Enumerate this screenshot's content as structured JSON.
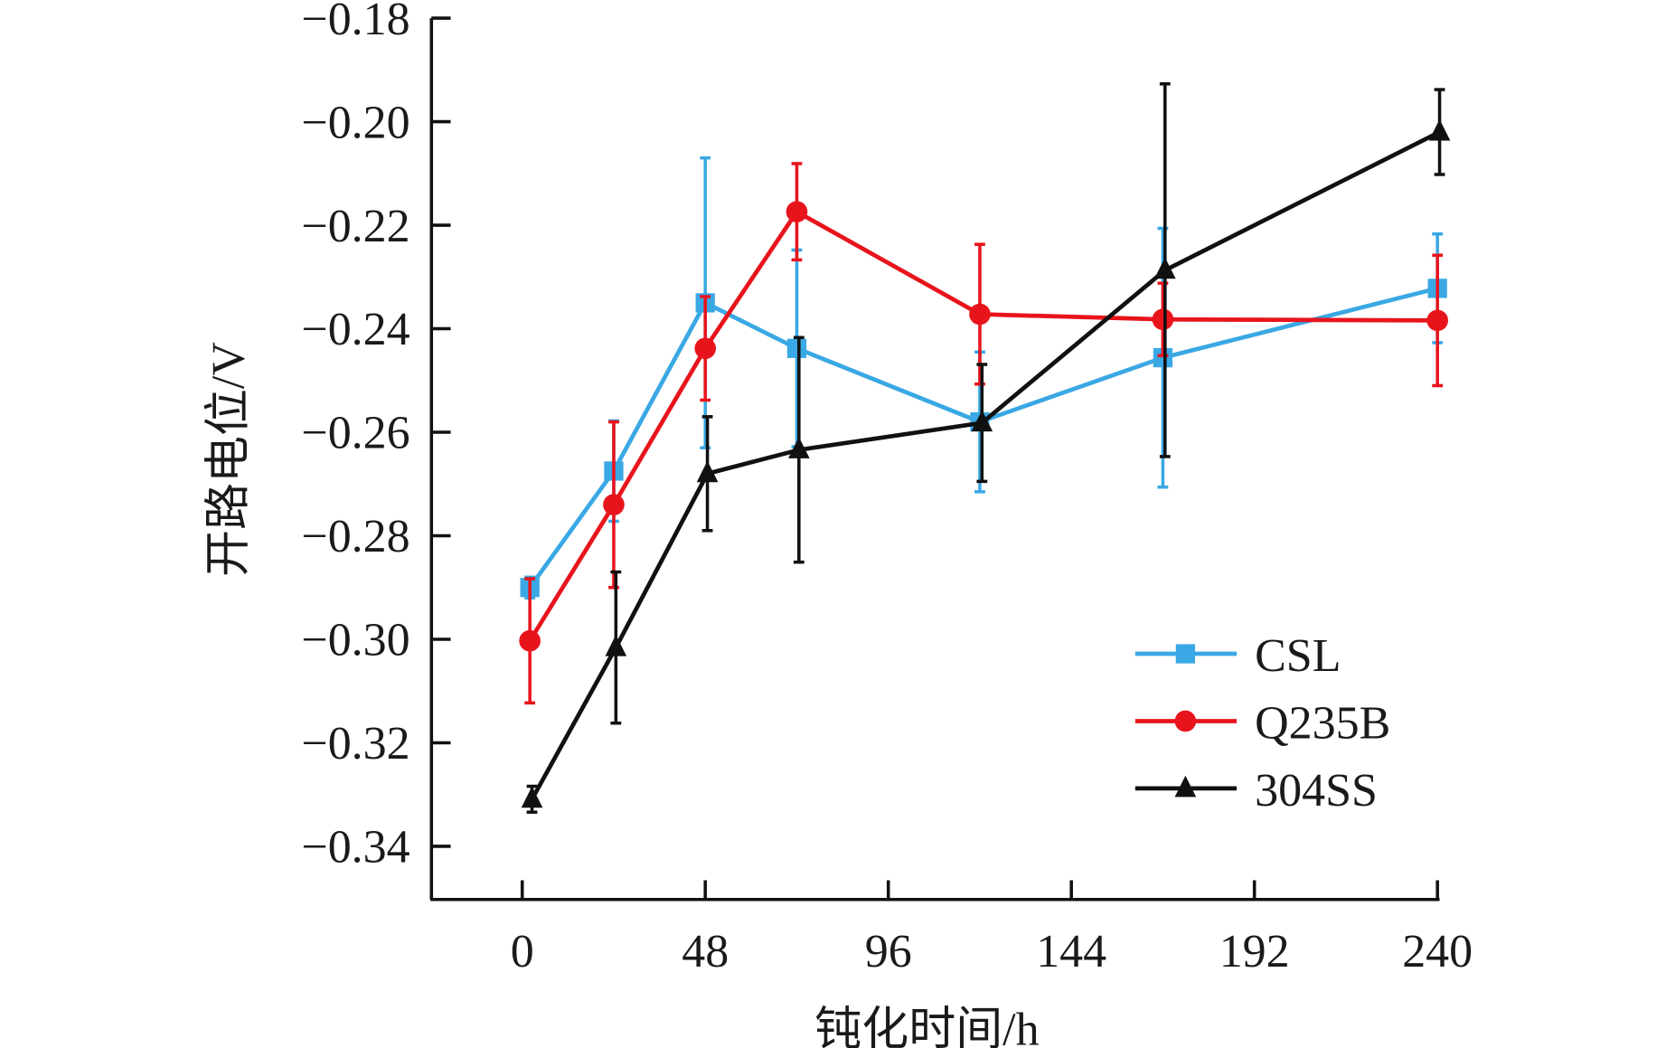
{
  "chart_data": {
    "type": "line",
    "title": "",
    "xlabel": "钝化时间/h",
    "ylabel": "开路电位/V",
    "xlim": [
      -50,
      250
    ],
    "ylim": [
      -0.35,
      -0.18
    ],
    "x_ticks": [
      0,
      48,
      96,
      144,
      192,
      240
    ],
    "x_tick_labels": [
      "0",
      "48",
      "96",
      "144",
      "192",
      "240"
    ],
    "y_ticks": [
      -0.18,
      -0.2,
      -0.22,
      -0.24,
      -0.26,
      -0.28,
      -0.3,
      -0.32,
      -0.34
    ],
    "y_tick_labels": [
      "−0.18",
      "−0.20",
      "−0.22",
      "−0.24",
      "−0.26",
      "−0.28",
      "−0.30",
      "−0.32",
      "−0.34"
    ],
    "grid": false,
    "legend_position": "bottom-right",
    "x": [
      2,
      24,
      48,
      72,
      120,
      168,
      240
    ],
    "series": [
      {
        "name": "CSL",
        "color": "#3aa8e4",
        "marker": "square",
        "values": [
          -0.29,
          -0.2675,
          -0.235,
          -0.2438,
          -0.258,
          -0.2456,
          -0.2322
        ],
        "errors": [
          0.002,
          0.0097,
          0.028,
          0.019,
          0.0135,
          0.025,
          0.0105
        ]
      },
      {
        "name": "Q235B",
        "color": "#e8141c",
        "marker": "circle",
        "values": [
          -0.3003,
          -0.274,
          -0.2438,
          -0.2174,
          -0.2372,
          -0.2382,
          -0.2384
        ],
        "errors": [
          0.012,
          0.016,
          0.01,
          0.0093,
          0.0135,
          0.007,
          0.0126
        ]
      },
      {
        "name": "304SS",
        "color": "#111111",
        "marker": "triangle",
        "values": [
          -0.3309,
          -0.3016,
          -0.268,
          -0.2634,
          -0.2582,
          -0.2287,
          -0.202
        ],
        "errors": [
          0.0025,
          0.0146,
          0.011,
          0.0217,
          0.0113,
          0.036,
          0.0082
        ]
      }
    ]
  }
}
